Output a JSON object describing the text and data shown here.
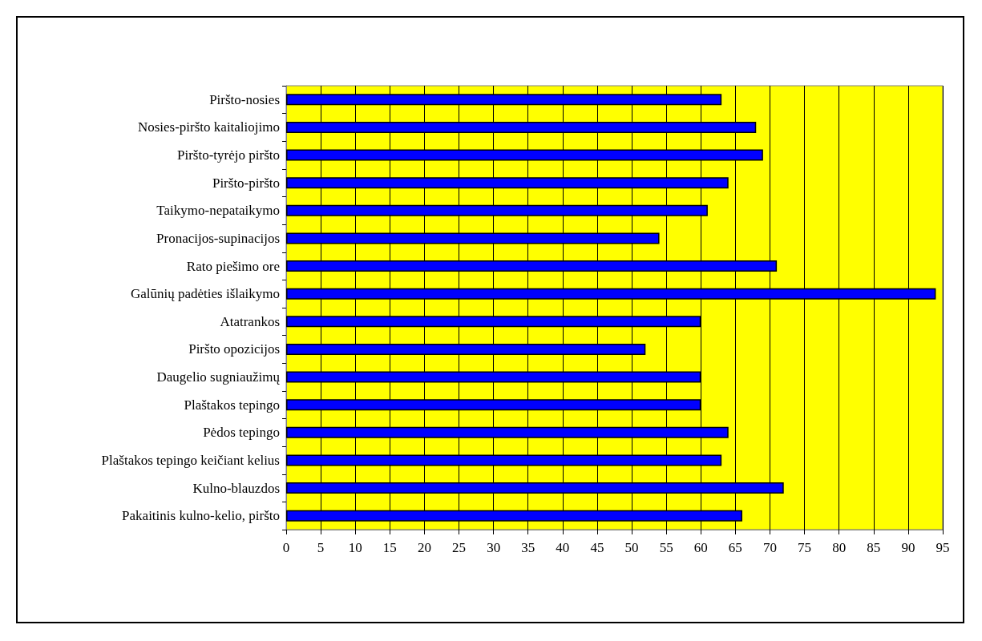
{
  "chart_data": {
    "type": "bar",
    "orientation": "horizontal",
    "categories": [
      "Piršto-nosies",
      "Nosies-piršto kaitaliojimo",
      "Piršto-tyrėjo piršto",
      "Piršto-piršto",
      "Taikymo-nepataikymo",
      "Pronacijos-supinacijos",
      "Rato piešimo ore",
      "Galūnių padėties išlaikymo",
      "Atatrankos",
      "Piršto opozicijos",
      "Daugelio sugniaužimų",
      "Plaštakos tepingo",
      "Pėdos tepingo",
      "Plaštakos tepingo keičiant kelius",
      "Kulno-blauzdos",
      "Pakaitinis kulno-kelio, piršto"
    ],
    "values": [
      63,
      68,
      69,
      64,
      61,
      54,
      71,
      94,
      60,
      52,
      60,
      60,
      64,
      63,
      72,
      66
    ],
    "color": "#0000ff",
    "xlim": [
      0,
      95
    ],
    "xticks": [
      0,
      5,
      10,
      15,
      20,
      25,
      30,
      35,
      40,
      45,
      50,
      55,
      60,
      65,
      70,
      75,
      80,
      85,
      90,
      95
    ],
    "grid": "x"
  }
}
